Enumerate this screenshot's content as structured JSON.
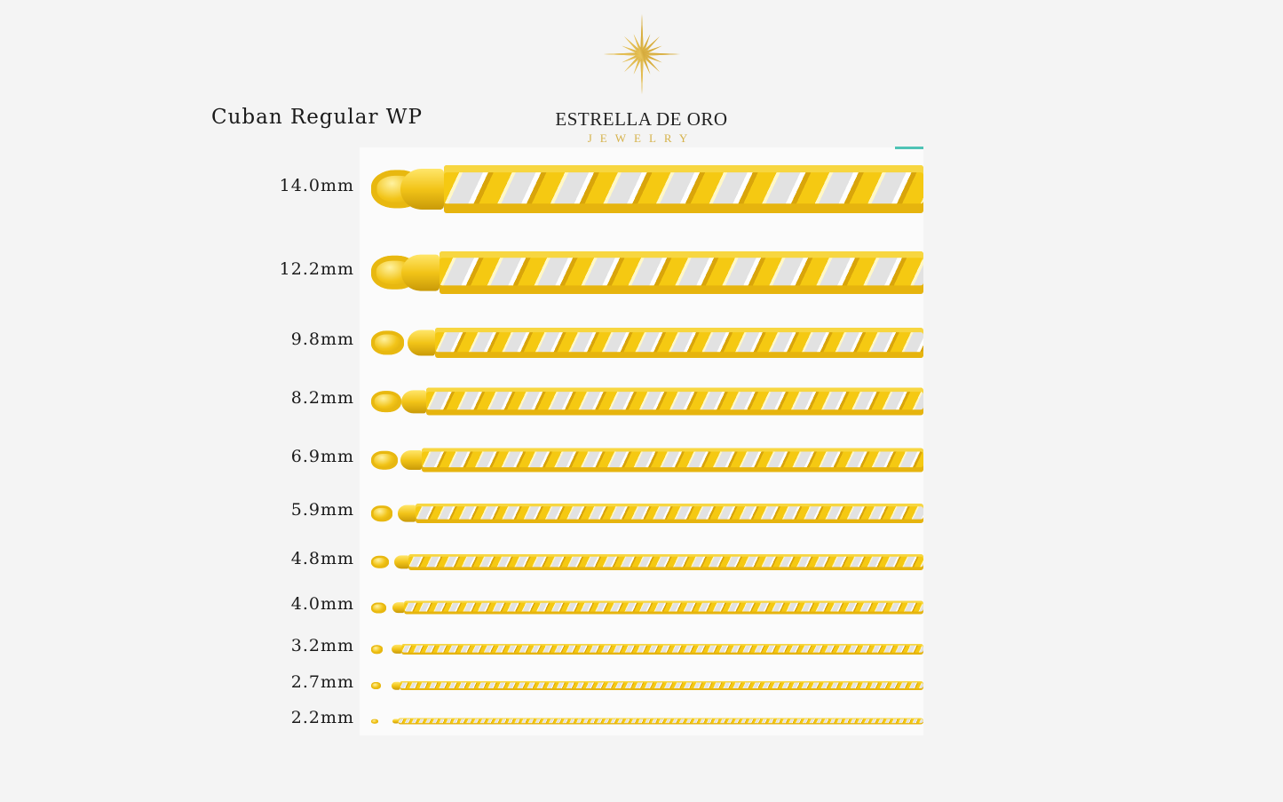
{
  "brand": {
    "name": "ESTRELLA DE ORO",
    "sub": "JEWELRY",
    "logo_icon": "gold-star-burst-icon",
    "gold_color": "#d6b24a"
  },
  "title": "Cuban Regular WP",
  "accent_color": "#4fc3b5",
  "chains": [
    {
      "size": "14.0mm"
    },
    {
      "size": "12.2mm"
    },
    {
      "size": "9.8mm"
    },
    {
      "size": "8.2mm"
    },
    {
      "size": "6.9mm"
    },
    {
      "size": "5.9mm"
    },
    {
      "size": "4.8mm"
    },
    {
      "size": "4.0mm"
    },
    {
      "size": "3.2mm"
    },
    {
      "size": "2.7mm"
    },
    {
      "size": "2.2mm"
    }
  ]
}
